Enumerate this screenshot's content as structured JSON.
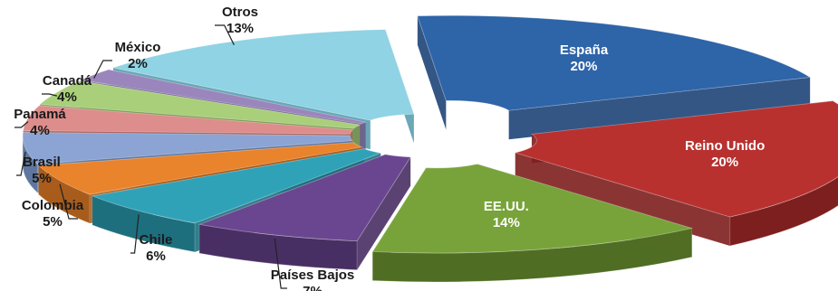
{
  "chart_data": {
    "type": "pie",
    "variant": "3d-exploded",
    "title": "",
    "slices": [
      {
        "name": "España",
        "value": 20,
        "label": "20%",
        "color": "#2e64a8",
        "dark": "#1d4478",
        "inside": true
      },
      {
        "name": "Reino Unido",
        "value": 20,
        "label": "20%",
        "color": "#b8312f",
        "dark": "#7d1f1e",
        "inside": true
      },
      {
        "name": "EE.UU.",
        "value": 14,
        "label": "14%",
        "color": "#78a33a",
        "dark": "#506d24",
        "inside": true
      },
      {
        "name": "Países Bajos",
        "value": 7,
        "label": "7%",
        "color": "#6a4690",
        "dark": "#482f63",
        "inside": false
      },
      {
        "name": "Chile",
        "value": 6,
        "label": "6%",
        "color": "#2fa2b8",
        "dark": "#1e6f7e",
        "inside": false
      },
      {
        "name": "Colombia",
        "value": 5,
        "label": "5%",
        "color": "#e9832c",
        "dark": "#a85c1c",
        "inside": false
      },
      {
        "name": "Brasil",
        "value": 5,
        "label": "5%",
        "color": "#8ba4d4",
        "dark": "#5f779f",
        "inside": false
      },
      {
        "name": "Panamá",
        "value": 4,
        "label": "4%",
        "color": "#dd8d8b",
        "dark": "#a76462",
        "inside": false
      },
      {
        "name": "Canadá",
        "value": 4,
        "label": "4%",
        "color": "#a9cf7a",
        "dark": "#789a52",
        "inside": false
      },
      {
        "name": "México",
        "value": 2,
        "label": "2%",
        "color": "#9a86bc",
        "dark": "#6e5d8d",
        "inside": false
      },
      {
        "name": "Otros",
        "value": 13,
        "label": "13%",
        "color": "#8fd3e4",
        "dark": "#5a9daf",
        "inside": false
      }
    ]
  }
}
